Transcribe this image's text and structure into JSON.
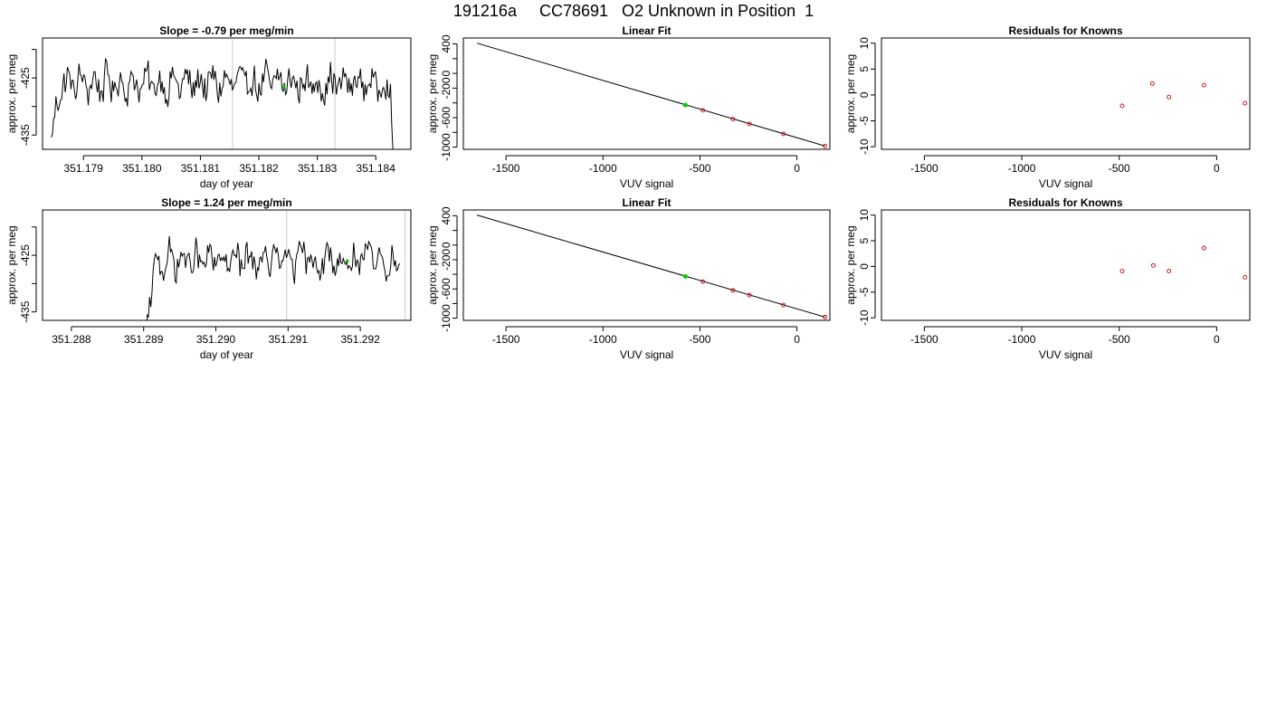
{
  "figure": {
    "title": "191216a     CC78691   O2 Unknown in Position  1",
    "colors": {
      "axis": "#000000",
      "trace": "#000000",
      "marker_vline": "#d3d3d3",
      "unknown": "#00cc00",
      "known": "#cc0000"
    }
  },
  "chart_data": [
    {
      "id": "row1-timeseries",
      "type": "line",
      "title": "Slope =  -0.79  per meg/min",
      "xlabel": "day of year",
      "ylabel": "approx. per meg",
      "xlim": [
        351.1783,
        351.1846
      ],
      "ylim": [
        -437.5,
        -418
      ],
      "xticks": [
        351.179,
        351.18,
        351.181,
        351.182,
        351.183,
        351.184
      ],
      "xticklabels": [
        "351.179",
        "351.180",
        "351.181",
        "351.182",
        "351.183",
        "351.184"
      ],
      "yticks": [
        -435,
        -430,
        -425,
        -420
      ],
      "yticklabels": [
        "-435",
        "",
        "-425",
        ""
      ],
      "x_start": 351.17845,
      "x_end": 351.18435,
      "baseline": -426,
      "noise_amp": 2.6,
      "end_drop": true,
      "start_drop_fraction": 0,
      "vlines": [
        351.18155,
        351.1833
      ],
      "highlight": {
        "x": 351.18243,
        "y": -426.5
      }
    },
    {
      "id": "row1-linearfit",
      "type": "scatter",
      "title": "Linear Fit",
      "xlabel": "VUV signal",
      "ylabel": "approx. per meg",
      "xlim": [
        -1720,
        170
      ],
      "ylim": [
        -1030,
        480
      ],
      "xticks": [
        -1500,
        -1000,
        -500,
        0
      ],
      "xticklabels": [
        "-1500",
        "-1000",
        "-500",
        "0"
      ],
      "yticks": [
        -1000,
        -800,
        -600,
        -400,
        -200,
        0,
        200,
        400
      ],
      "yticklabels": [
        "-1000",
        "",
        "-600",
        "",
        "-200",
        "0",
        "",
        "400"
      ],
      "fit_line": {
        "x": [
          -1650,
          145
        ],
        "y": [
          410,
          -985
        ]
      },
      "unknown_point": {
        "x": -575,
        "y": -430
      },
      "known_points": [
        {
          "x": -485,
          "y": -500
        },
        {
          "x": -330,
          "y": -620
        },
        {
          "x": -245,
          "y": -685
        },
        {
          "x": -70,
          "y": -820
        },
        {
          "x": 145,
          "y": -985
        }
      ]
    },
    {
      "id": "row1-residuals",
      "type": "scatter",
      "title": "Residuals for Knowns",
      "xlabel": "VUV signal",
      "ylabel": "approx. per meg",
      "xlim": [
        -1720,
        170
      ],
      "ylim": [
        -10.5,
        11
      ],
      "xticks": [
        -1500,
        -1000,
        -500,
        0
      ],
      "xticklabels": [
        "-1500",
        "-1000",
        "-500",
        "0"
      ],
      "yticks": [
        -10,
        -5,
        0,
        5,
        10
      ],
      "yticklabels": [
        "-10",
        "-5",
        "0",
        "5",
        "10"
      ],
      "known_points": [
        {
          "x": -485,
          "y": -2.1
        },
        {
          "x": -330,
          "y": 2.2
        },
        {
          "x": -245,
          "y": -0.4
        },
        {
          "x": -65,
          "y": 1.9
        },
        {
          "x": 145,
          "y": -1.6
        }
      ]
    },
    {
      "id": "row2-timeseries",
      "type": "line",
      "title": "Slope =  1.24  per meg/min",
      "xlabel": "day of year",
      "ylabel": "approx. per meg",
      "xlim": [
        351.2876,
        351.2927
      ],
      "ylim": [
        -436.5,
        -417
      ],
      "xticks": [
        351.288,
        351.289,
        351.29,
        351.291,
        351.292
      ],
      "xticklabels": [
        "351.288",
        "351.289",
        "351.290",
        "351.291",
        "351.292"
      ],
      "yticks": [
        -435,
        -430,
        -425,
        -420
      ],
      "yticklabels": [
        "-435",
        "",
        "-425",
        ""
      ],
      "x_start": 351.28775,
      "x_end": 351.29255,
      "baseline": -426,
      "noise_amp": 2.4,
      "end_drop": false,
      "start_drop_fraction": 0.27,
      "vlines": [
        351.29098,
        351.29262
      ],
      "highlight": {
        "x": 351.29182,
        "y": -426
      }
    },
    {
      "id": "row2-linearfit",
      "type": "scatter",
      "title": "Linear Fit",
      "xlabel": "VUV signal",
      "ylabel": "approx. per meg",
      "xlim": [
        -1720,
        170
      ],
      "ylim": [
        -1030,
        480
      ],
      "xticks": [
        -1500,
        -1000,
        -500,
        0
      ],
      "xticklabels": [
        "-1500",
        "-1000",
        "-500",
        "0"
      ],
      "yticks": [
        -1000,
        -800,
        -600,
        -400,
        -200,
        0,
        200,
        400
      ],
      "yticklabels": [
        "-1000",
        "",
        "-600",
        "",
        "-200",
        "0",
        "",
        "400"
      ],
      "fit_line": {
        "x": [
          -1650,
          145
        ],
        "y": [
          410,
          -985
        ]
      },
      "unknown_point": {
        "x": -575,
        "y": -430
      },
      "known_points": [
        {
          "x": -485,
          "y": -500
        },
        {
          "x": -330,
          "y": -620
        },
        {
          "x": -245,
          "y": -685
        },
        {
          "x": -70,
          "y": -820
        },
        {
          "x": 145,
          "y": -985
        }
      ]
    },
    {
      "id": "row2-residuals",
      "type": "scatter",
      "title": "Residuals for Knowns",
      "xlabel": "VUV signal",
      "ylabel": "approx. per meg",
      "xlim": [
        -1720,
        170
      ],
      "ylim": [
        -10.5,
        11
      ],
      "xticks": [
        -1500,
        -1000,
        -500,
        0
      ],
      "xticklabels": [
        "-1500",
        "-1000",
        "-500",
        "0"
      ],
      "yticks": [
        -10,
        -5,
        0,
        5,
        10
      ],
      "yticklabels": [
        "-10",
        "-5",
        "0",
        "5",
        "10"
      ],
      "known_points": [
        {
          "x": -485,
          "y": -0.9
        },
        {
          "x": -325,
          "y": 0.2
        },
        {
          "x": -245,
          "y": -0.9
        },
        {
          "x": -65,
          "y": 3.6
        },
        {
          "x": 145,
          "y": -2.1
        }
      ]
    }
  ]
}
